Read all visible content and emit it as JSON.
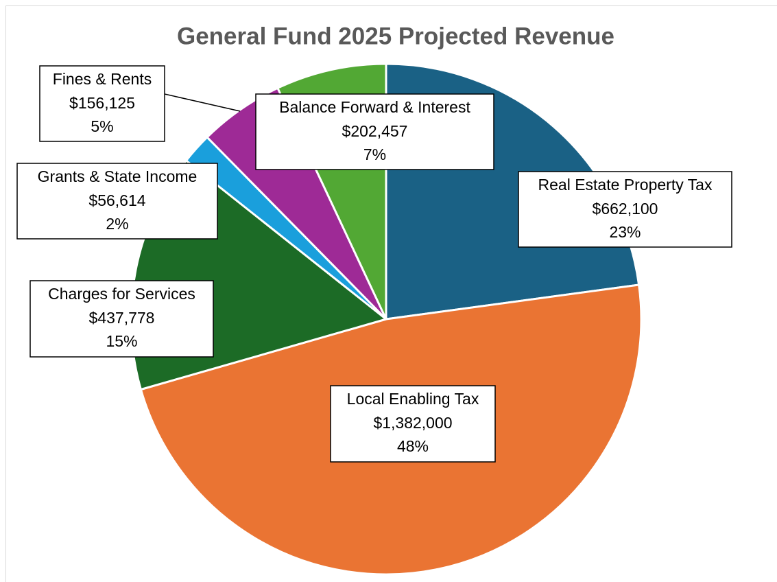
{
  "chart_data": {
    "type": "pie",
    "title": "General Fund 2025 Projected Revenue",
    "categories": [
      "Real Estate Property Tax",
      "Local Enabling Tax",
      "Charges for Services",
      "Grants & State Income",
      "Fines & Rents",
      "Balance Forward & Interest"
    ],
    "values": [
      662100,
      1382000,
      437778,
      56614,
      156125,
      202457
    ],
    "value_labels": [
      "$662,100",
      "$1,382,000",
      "$437,778",
      "$56,614",
      "$156,125",
      "$202,457"
    ],
    "percents": [
      23,
      48,
      15,
      2,
      5,
      7
    ],
    "percent_labels": [
      "23%",
      "48%",
      "15%",
      "2%",
      "5%",
      "7%"
    ],
    "colors": [
      "#1a6185",
      "#ea7433",
      "#1c6b26",
      "#1a9fdc",
      "#9e2a96",
      "#52a834"
    ]
  }
}
